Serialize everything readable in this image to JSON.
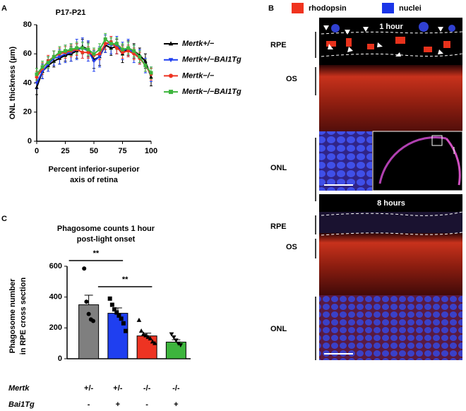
{
  "panels": {
    "a": "A",
    "b": "B",
    "c": "C"
  },
  "images": {
    "legend": [
      {
        "name": "rhodopsin",
        "color": "#f0331e"
      },
      {
        "name": "nuclei",
        "color": "#1a35e8"
      }
    ],
    "top": {
      "time": "1 hour",
      "layers": [
        "RPE",
        "OS",
        "ONL"
      ]
    },
    "bottom": {
      "time": "8 hours",
      "layers": [
        "RPE",
        "OS",
        "ONL"
      ]
    }
  },
  "chart_data": [
    {
      "type": "line",
      "title": "P17-P21",
      "y_label": "ONL thickness (µm)",
      "x_label": [
        "Percent inferior-superior",
        "axis of retina"
      ],
      "x": [
        0,
        5,
        10,
        15,
        20,
        25,
        30,
        35,
        40,
        45,
        50,
        55,
        60,
        65,
        70,
        75,
        80,
        85,
        90,
        95,
        100
      ],
      "xlim": [
        0,
        100
      ],
      "xticks": [
        0,
        25,
        50,
        75,
        100
      ],
      "ylim": [
        0,
        80
      ],
      "yticks": [
        0,
        20,
        40,
        60,
        80
      ],
      "grid": false,
      "series": [
        {
          "name": "Mertk+/−",
          "color": "#000000",
          "marker": "triangle",
          "values": [
            37,
            48,
            52,
            55,
            57,
            59,
            60,
            62,
            65,
            63,
            56,
            58,
            66,
            64,
            65,
            60,
            64,
            62,
            59,
            55,
            44
          ],
          "errors": [
            5,
            5,
            4,
            4,
            4,
            4,
            5,
            5,
            5,
            5,
            6,
            6,
            5,
            5,
            5,
            6,
            5,
            5,
            5,
            5,
            6
          ]
        },
        {
          "name": "Mertk+/−BAI1Tg",
          "color": "#1f3ff0",
          "marker": "down-triangle",
          "values": [
            40,
            48,
            53,
            57,
            58,
            60,
            61,
            63,
            64,
            62,
            55,
            58,
            67,
            66,
            66,
            62,
            64,
            60,
            58,
            52,
            46
          ],
          "errors": [
            4,
            5,
            5,
            5,
            5,
            6,
            6,
            7,
            7,
            7,
            7,
            7,
            6,
            6,
            6,
            6,
            6,
            6,
            5,
            5,
            5
          ]
        },
        {
          "name": "Mertk−/−",
          "color": "#ee3322",
          "marker": "circle",
          "values": [
            44,
            50,
            55,
            58,
            60,
            61,
            62,
            63,
            61,
            61,
            59,
            60,
            67,
            68,
            64,
            61,
            62,
            60,
            57,
            52,
            46
          ],
          "errors": [
            4,
            4,
            4,
            4,
            4,
            4,
            4,
            4,
            4,
            4,
            4,
            4,
            4,
            4,
            4,
            4,
            4,
            4,
            4,
            4,
            4
          ]
        },
        {
          "name": "Mertk−/−BAI1Tg",
          "color": "#3db53d",
          "marker": "square",
          "values": [
            46,
            51,
            54,
            58,
            61,
            62,
            63,
            64,
            64,
            63,
            60,
            63,
            70,
            67,
            67,
            63,
            64,
            62,
            58,
            52,
            47
          ],
          "errors": [
            4,
            4,
            4,
            4,
            4,
            4,
            4,
            4,
            4,
            4,
            4,
            4,
            4,
            4,
            4,
            4,
            4,
            4,
            4,
            4,
            4
          ]
        }
      ]
    },
    {
      "type": "bar",
      "title": [
        "Phagosome counts 1 hour",
        "post-light onset"
      ],
      "y_label": [
        "Phagosome number",
        "in RPE cross section"
      ],
      "row_labels": [
        "Mertk",
        "Bai1Tg"
      ],
      "categories": [
        [
          "+/-",
          "-"
        ],
        [
          "+/-",
          "+"
        ],
        [
          "-/-",
          "-"
        ],
        [
          "-/-",
          "+"
        ]
      ],
      "values": [
        350,
        295,
        148,
        108
      ],
      "errors": [
        62,
        35,
        18,
        15
      ],
      "colors": [
        "#7f7f7f",
        "#1f3ff0",
        "#ee3322",
        "#3db53d"
      ],
      "markers": [
        "circle",
        "square",
        "triangle",
        "down-triangle"
      ],
      "points": [
        [
          585,
          370,
          290,
          255,
          245
        ],
        [
          390,
          350,
          320,
          300,
          280,
          260,
          230,
          180
        ],
        [
          250,
          180,
          160,
          150,
          140,
          130,
          110,
          100
        ],
        [
          160,
          140,
          120,
          100,
          90
        ]
      ],
      "ylim": [
        0,
        600
      ],
      "yticks": [
        0,
        200,
        400,
        600
      ],
      "grid": false,
      "annotations": [
        {
          "label": "**",
          "from": 0,
          "to": 2
        },
        {
          "label": "**",
          "from": 1,
          "to": 3
        }
      ]
    }
  ]
}
